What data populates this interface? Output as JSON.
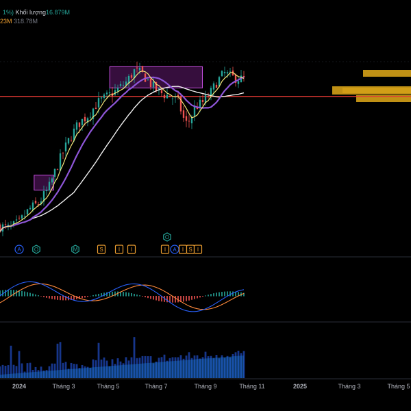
{
  "legend": {
    "pct_fragment": "1%)",
    "volume_label": "Khối lượng",
    "volume_value": "16.879",
    "volume_unit": "M",
    "line2_value_a": "23M",
    "line2_value_b": "318.78M"
  },
  "colors": {
    "background": "#000000",
    "up": "#26a69a",
    "down": "#ef5350",
    "ma_fast": "#f5e67a",
    "ma_mid": "#8e56d8",
    "ma_slow": "#f0f0f0",
    "macd": "#2962ff",
    "signal": "#ff8a3d",
    "resistance": "#e53935",
    "zone": "#9c27b0",
    "profile": "#d4a017"
  },
  "chart_data": {
    "type": "candlestick",
    "x_ticks": [
      "2024",
      "Tháng 3",
      "Tháng 5",
      "Tháng 7",
      "Tháng 9",
      "Tháng 11",
      "2025",
      "Tháng 3",
      "Tháng 5"
    ],
    "price_path": [
      [
        0,
        22
      ],
      [
        0.04,
        21
      ],
      [
        0.08,
        24
      ],
      [
        0.12,
        30
      ],
      [
        0.16,
        33
      ],
      [
        0.2,
        40
      ],
      [
        0.24,
        52
      ],
      [
        0.28,
        62
      ],
      [
        0.32,
        70
      ],
      [
        0.36,
        74
      ],
      [
        0.4,
        80
      ],
      [
        0.44,
        83
      ],
      [
        0.48,
        86
      ],
      [
        0.52,
        90
      ],
      [
        0.55,
        95
      ],
      [
        0.58,
        94
      ],
      [
        0.61,
        90
      ],
      [
        0.64,
        86
      ],
      [
        0.67,
        84
      ],
      [
        0.7,
        83
      ],
      [
        0.73,
        81
      ],
      [
        0.76,
        70
      ],
      [
        0.78,
        72
      ],
      [
        0.8,
        78
      ],
      [
        0.83,
        80
      ],
      [
        0.86,
        84
      ],
      [
        0.89,
        90
      ],
      [
        0.92,
        94
      ],
      [
        0.95,
        92
      ],
      [
        1.0,
        91
      ]
    ],
    "resistance_level": 83,
    "zones": [
      {
        "x0": 0.45,
        "x1": 0.83,
        "y0": 87,
        "y1": 97
      },
      {
        "x0": 0.14,
        "x1": 0.22,
        "y0": 39,
        "y1": 46
      }
    ],
    "events": [
      {
        "label": "A",
        "kind": "circle",
        "color": "#2962ff"
      },
      {
        "label": "O",
        "kind": "hex",
        "color": "#26a69a"
      },
      {
        "label": "M",
        "kind": "hex",
        "color": "#26a69a"
      },
      {
        "label": "S",
        "kind": "square",
        "color": "#f0a030"
      },
      {
        "label": "I",
        "kind": "square",
        "color": "#f0a030"
      },
      {
        "label": "I",
        "kind": "square",
        "color": "#f0a030"
      },
      {
        "label": "O",
        "kind": "hex",
        "color": "#26a69a"
      },
      {
        "label": "I",
        "kind": "square",
        "color": "#f0a030"
      },
      {
        "label": "A",
        "kind": "circle",
        "color": "#2962ff"
      },
      {
        "label": "I",
        "kind": "square",
        "color": "#f0a030"
      },
      {
        "label": "S",
        "kind": "square",
        "color": "#f0a030"
      },
      {
        "label": "I",
        "kind": "square",
        "color": "#f0a030"
      }
    ]
  }
}
